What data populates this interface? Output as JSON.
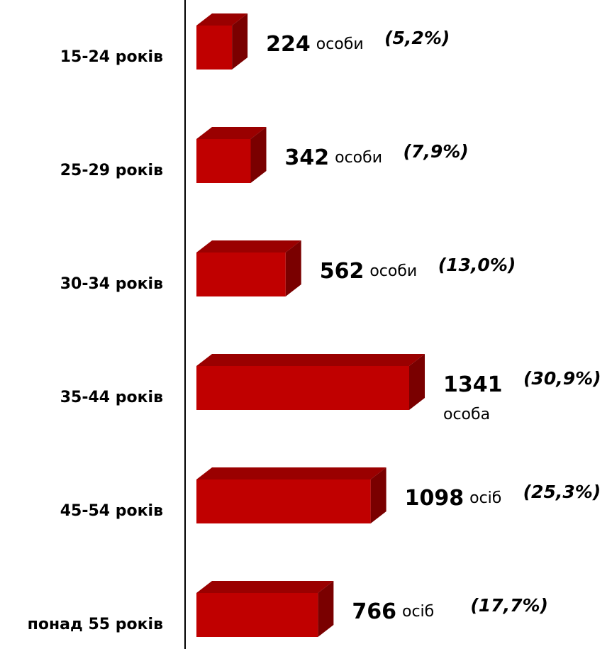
{
  "chart_data": {
    "type": "bar3d_horizontal",
    "categories": [
      "15-24 років",
      "25-29 років",
      "30-34 років",
      "35-44 років",
      "45-54 років",
      "понад 55 років"
    ],
    "values": [
      224,
      342,
      562,
      1341,
      1098,
      766
    ],
    "units": [
      "особи",
      "особи",
      "особи",
      "особа",
      "осіб",
      "осіб"
    ],
    "shares": [
      5.2,
      7.9,
      13.0,
      30.9,
      25.3,
      17.7
    ],
    "share_labels": [
      "(5,2%)",
      "(7,9%)",
      "(13,0%)",
      "(30,9%)",
      "(25,3%)",
      "(17,7%)"
    ],
    "color": "#c00000"
  }
}
